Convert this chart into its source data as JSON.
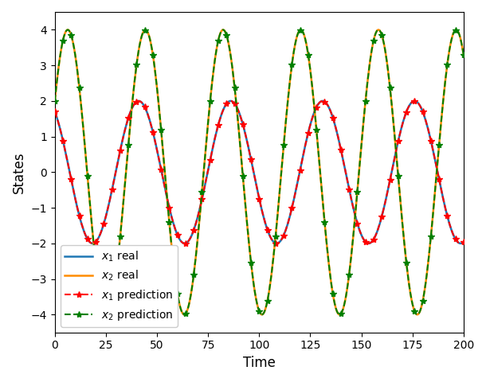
{
  "title": "",
  "xlabel": "Time",
  "ylabel": "States",
  "xlim": [
    0,
    200
  ],
  "ylim": [
    -4.5,
    4.5
  ],
  "xticks": [
    0,
    25,
    50,
    75,
    100,
    125,
    150,
    175,
    200
  ],
  "n_points": 401,
  "t_start": 0,
  "t_end": 200,
  "x1_amplitude": 2.0,
  "x2_amplitude": 4.0,
  "omega1": 0.13963,
  "omega2": 0.16534,
  "x1_phase": 1.03,
  "x2_phase": 1.1,
  "color_x1_pred": "#FF0000",
  "color_x2_pred": "#008000",
  "color_x1_real": "#1f77b4",
  "color_x2_real": "#FF8C00",
  "marker_size": 6,
  "marker_every": 8,
  "linewidth_pred": 1.5,
  "linewidth_real": 1.8,
  "legend_labels": [
    "$x_1$ prediction",
    "$x_2$ prediction",
    "$x_1$ real",
    "$x_2$ real"
  ],
  "legend_loc": "lower left",
  "figsize": [
    6.1,
    4.8
  ],
  "dpi": 100
}
